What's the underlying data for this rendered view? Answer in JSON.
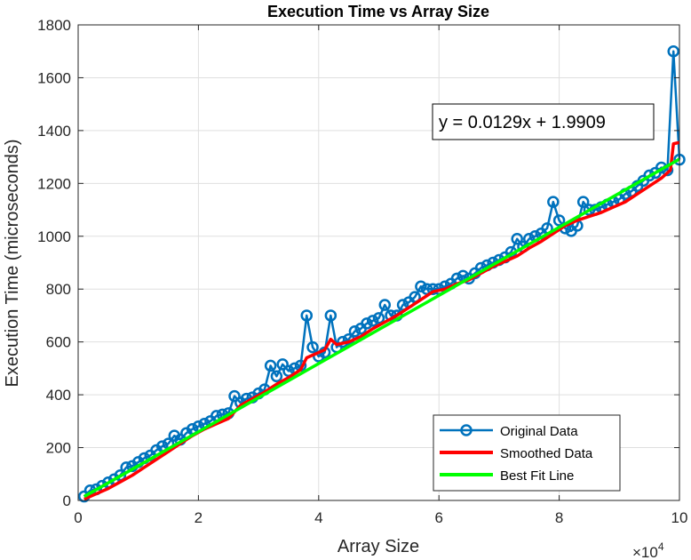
{
  "chart_data": {
    "type": "line",
    "title": "Execution Time vs Array Size",
    "xlabel": "Array Size",
    "ylabel": "Execution Time (microseconds)",
    "x_exponent_label": "×10",
    "x_exponent_power": "4",
    "xlim": [
      0,
      100000
    ],
    "ylim": [
      0,
      1800
    ],
    "x_tick_values": [
      0,
      20000,
      40000,
      60000,
      80000,
      100000
    ],
    "x_tick_labels": [
      "0",
      "2",
      "4",
      "6",
      "8",
      "10"
    ],
    "y_tick_values": [
      0,
      200,
      400,
      600,
      800,
      1000,
      1200,
      1400,
      1600,
      1800
    ],
    "y_tick_labels": [
      "0",
      "200",
      "400",
      "600",
      "800",
      "1000",
      "1200",
      "1400",
      "1600",
      "1800"
    ],
    "grid": true,
    "legend_position": "bottom-right",
    "annotation": "y = 0.0129x + 1.9909",
    "colors": {
      "original": "#0072BD",
      "smoothed": "#FF0000",
      "bestfit": "#00FF00",
      "axis": "#262626",
      "grid": "#DFDFDF"
    },
    "series": [
      {
        "name": "Original Data",
        "marker": "circle",
        "x": [
          1000,
          2000,
          3000,
          4000,
          5000,
          6000,
          7000,
          8000,
          9000,
          10000,
          11000,
          12000,
          13000,
          14000,
          15000,
          16000,
          17000,
          18000,
          19000,
          20000,
          21000,
          22000,
          23000,
          24000,
          25000,
          26000,
          27000,
          28000,
          29000,
          30000,
          31000,
          32000,
          33000,
          34000,
          35000,
          36000,
          37000,
          38000,
          39000,
          40000,
          41000,
          42000,
          43000,
          44000,
          45000,
          46000,
          47000,
          48000,
          49000,
          50000,
          51000,
          52000,
          53000,
          54000,
          55000,
          56000,
          57000,
          58000,
          59000,
          60000,
          61000,
          62000,
          63000,
          64000,
          65000,
          66000,
          67000,
          68000,
          69000,
          70000,
          71000,
          72000,
          73000,
          74000,
          75000,
          76000,
          77000,
          78000,
          79000,
          80000,
          81000,
          82000,
          83000,
          84000,
          85000,
          86000,
          87000,
          88000,
          89000,
          90000,
          91000,
          92000,
          93000,
          94000,
          95000,
          96000,
          97000,
          98000,
          99000,
          100000
        ],
        "y": [
          15,
          38,
          42,
          55,
          68,
          80,
          95,
          125,
          130,
          145,
          160,
          170,
          190,
          205,
          215,
          245,
          230,
          255,
          270,
          280,
          290,
          300,
          320,
          325,
          330,
          395,
          370,
          385,
          390,
          405,
          420,
          510,
          470,
          515,
          490,
          500,
          510,
          700,
          580,
          545,
          560,
          700,
          580,
          600,
          610,
          640,
          650,
          670,
          680,
          690,
          740,
          700,
          700,
          740,
          750,
          770,
          810,
          800,
          800,
          800,
          810,
          820,
          840,
          850,
          840,
          860,
          880,
          890,
          900,
          910,
          920,
          940,
          990,
          960,
          990,
          1000,
          1010,
          1030,
          1130,
          1060,
          1030,
          1020,
          1040,
          1130,
          1100,
          1100,
          1110,
          1120,
          1130,
          1140,
          1160,
          1170,
          1190,
          1210,
          1230,
          1240,
          1260,
          1250,
          1700,
          1290
        ]
      },
      {
        "name": "Smoothed Data",
        "x": [
          1000,
          3000,
          5000,
          7000,
          9000,
          11000,
          13000,
          15000,
          17000,
          19000,
          21000,
          23000,
          25000,
          27000,
          29000,
          31000,
          33000,
          35000,
          37000,
          38000,
          39000,
          40000,
          41000,
          42000,
          43000,
          45000,
          47000,
          49000,
          51000,
          53000,
          55000,
          57000,
          59000,
          61000,
          63000,
          65000,
          67000,
          69000,
          71000,
          73000,
          75000,
          77000,
          79000,
          81000,
          83000,
          85000,
          87000,
          89000,
          91000,
          93000,
          95000,
          97000,
          98500,
          99000,
          100000
        ],
        "y": [
          5,
          25,
          45,
          70,
          95,
          125,
          155,
          185,
          215,
          245,
          270,
          290,
          310,
          360,
          385,
          410,
          440,
          465,
          495,
          540,
          550,
          560,
          570,
          610,
          590,
          600,
          620,
          650,
          675,
          700,
          730,
          760,
          790,
          800,
          820,
          835,
          860,
          885,
          905,
          925,
          955,
          980,
          1010,
          1040,
          1060,
          1075,
          1090,
          1110,
          1130,
          1160,
          1190,
          1220,
          1250,
          1350,
          1355
        ]
      },
      {
        "name": "Best Fit Line",
        "x": [
          1000,
          100000
        ],
        "y": [
          14.89,
          1291.99
        ]
      }
    ]
  }
}
